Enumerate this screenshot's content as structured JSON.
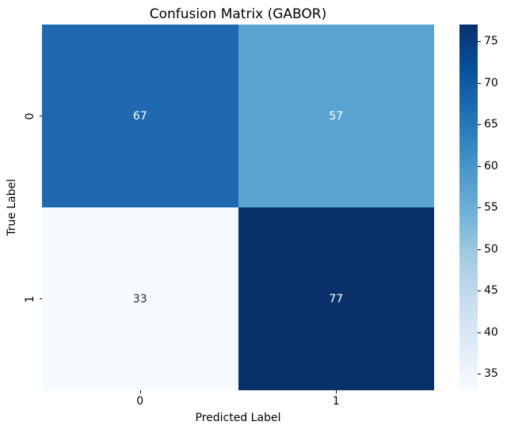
{
  "title": "Confusion Matrix (GABOR)",
  "chart_data": {
    "type": "heatmap",
    "title": "Confusion Matrix (GABOR)",
    "xlabel": "Predicted Label",
    "ylabel": "True Label",
    "x_ticklabels": [
      "0",
      "1"
    ],
    "y_ticklabels": [
      "0",
      "1"
    ],
    "matrix": [
      [
        67,
        57
      ],
      [
        33,
        77
      ]
    ],
    "vmin": 33,
    "vmax": 77,
    "colormap": "Blues",
    "grid": false,
    "legend": "colorbar-right",
    "cells": [
      {
        "row": "0",
        "col": "0",
        "value": "67",
        "bg": "#2069b0",
        "fg": "#ffffff"
      },
      {
        "row": "0",
        "col": "1",
        "value": "57",
        "bg": "#5ba3d0",
        "fg": "#ffffff"
      },
      {
        "row": "1",
        "col": "0",
        "value": "33",
        "bg": "#f7fbff",
        "fg": "#262626"
      },
      {
        "row": "1",
        "col": "1",
        "value": "77",
        "bg": "#08306b",
        "fg": "#ffffff"
      }
    ],
    "colorbar": {
      "ticks": [
        "35",
        "40",
        "45",
        "50",
        "55",
        "60",
        "65",
        "70",
        "75"
      ],
      "gradient_bottom_to_top": [
        "#f7fbff",
        "#deebf7",
        "#c6dbef",
        "#9ecae1",
        "#6baed6",
        "#4292c6",
        "#2171b5",
        "#08519c",
        "#08306b"
      ]
    }
  }
}
